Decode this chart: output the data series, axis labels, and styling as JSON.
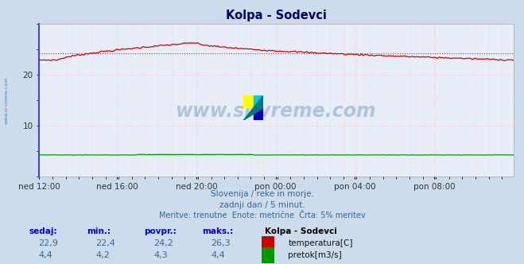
{
  "title": "Kolpa - Sodevci",
  "bg_color": "#ccdcec",
  "plot_bg_color": "#e8eef8",
  "grid_color_pink": "#ffb0b0",
  "grid_color_gray": "#c8d4e8",
  "x_labels": [
    "ned 12:00",
    "ned 16:00",
    "ned 20:00",
    "pon 00:00",
    "pon 04:00",
    "pon 08:00"
  ],
  "x_ticks_norm": [
    0.0,
    0.1667,
    0.3333,
    0.5,
    0.6667,
    0.8333
  ],
  "n_points": 288,
  "temp_min": 22.4,
  "temp_max": 26.3,
  "temp_avg": 24.2,
  "temp_current": 22.9,
  "flow_min": 4.2,
  "flow_max": 4.4,
  "flow_avg": 4.3,
  "flow_current": 4.4,
  "y_min": 0,
  "y_max": 30,
  "y_ticks": [
    10,
    20
  ],
  "temp_color": "#cc0000",
  "flow_color": "#009900",
  "avg_line_color": "#cc0000",
  "subtitle1": "Slovenija / reke in morje.",
  "subtitle2": "zadnji dan / 5 minut.",
  "subtitle3": "Meritve: trenutne  Enote: metrične  Črta: 5% meritev",
  "watermark": "www.si-vreme.com",
  "left_label": "www.si-vreme.com",
  "table_headers": [
    "sedaj:",
    "min.:",
    "povpr.:",
    "maks.:"
  ],
  "table_row1": [
    "22,9",
    "22,4",
    "24,2",
    "26,3"
  ],
  "table_row2": [
    "4,4",
    "4,2",
    "4,3",
    "4,4"
  ],
  "legend_title": "Kolpa - Sodevci",
  "legend_items": [
    "temperatura[C]",
    "pretok[m3/s]"
  ],
  "legend_colors": [
    "#cc0000",
    "#009900"
  ],
  "left_bar_color": "#4444cc",
  "arrow_color": "#cc0000",
  "text_color_blue": "#336699",
  "text_color_header": "#0000cc",
  "text_color_title": "#000066"
}
